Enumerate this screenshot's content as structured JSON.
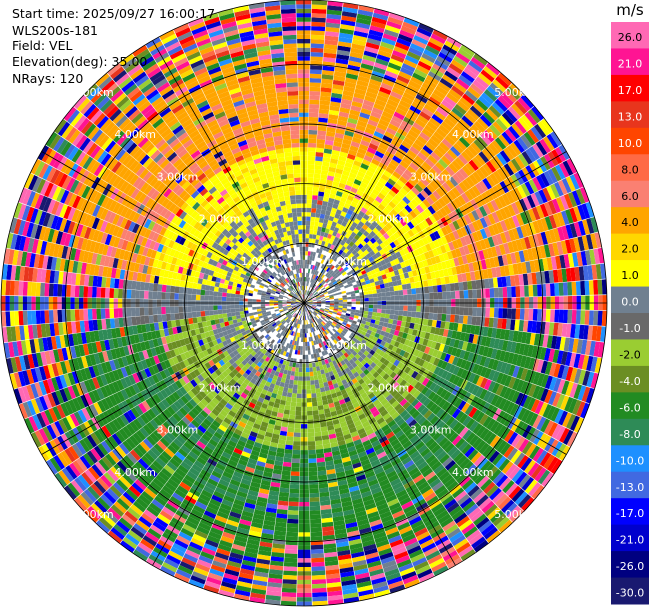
{
  "header": {
    "start_time": "Start time: 2025/09/27 16:00:17",
    "instrument": "WLS200s-181",
    "field": "Field: VEL",
    "elevation": "Elevation(deg): 35.00",
    "nrays": "NRays: 120"
  },
  "chart_data": {
    "type": "heatmap",
    "projection": "polar-ppi",
    "nrays": 120,
    "range_rings_km": [
      1,
      2,
      3,
      4,
      5
    ],
    "ring_labels": [
      "1.00km",
      "2.00km",
      "3.00km",
      "4.00km",
      "5.00km"
    ],
    "max_range_km": 5.0,
    "velocity_regimes": [
      {
        "range_km": [
          0.0,
          1.0
        ],
        "dominant": "0.0 (gray) with scattered 2.0"
      },
      {
        "range_km": [
          1.0,
          2.0
        ],
        "north": "2.0 to 4.0",
        "south": "-1.0 to -2.0"
      },
      {
        "range_km": [
          2.0,
          3.5
        ],
        "north": "4.0 to 8.0",
        "south": "-4.0 to -8.0"
      },
      {
        "range_km": [
          3.5,
          5.0
        ],
        "all": "noisy, mixed values"
      }
    ],
    "colorbar": {
      "unit": "m/s",
      "ticks": [
        "26.0",
        "21.0",
        "17.0",
        "13.0",
        "10.0",
        "8.0",
        "6.0",
        "4.0",
        "2.0",
        "1.0",
        "0.0",
        "-1.0",
        "-2.0",
        "-4.0",
        "-6.0",
        "-8.0",
        "-10.0",
        "-13.0",
        "-17.0",
        "-21.0",
        "-26.0",
        "-30.0"
      ],
      "colors": [
        "#ff69b4",
        "#ff1493",
        "#ff0000",
        "#e8351d",
        "#ff4500",
        "#ff6a45",
        "#fa8072",
        "#ffa500",
        "#ffd700",
        "#ffff00",
        "#708090",
        "#696969",
        "#9acd32",
        "#6b8e23",
        "#228b22",
        "#2e8b57",
        "#1e90ff",
        "#4169e1",
        "#0000ff",
        "#0000cd",
        "#000080",
        "#191970"
      ]
    }
  }
}
